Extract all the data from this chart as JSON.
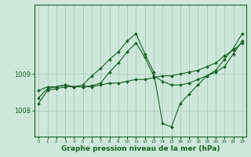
{
  "background_color": "#cce8d8",
  "plot_bg_color": "#cce8d8",
  "grid_color": "#aaccbb",
  "line_color": "#1a5e2a",
  "xlabel": "Graphe pression niveau de la mer (hPa)",
  "xlabel_fontsize": 6.5,
  "ylim": [
    1007.3,
    1010.9
  ],
  "yticks": [
    1008,
    1009
  ],
  "xlim": [
    -0.5,
    23.5
  ],
  "xticks": [
    0,
    1,
    2,
    3,
    4,
    5,
    6,
    7,
    8,
    9,
    10,
    11,
    12,
    13,
    14,
    15,
    16,
    17,
    18,
    19,
    20,
    21,
    22,
    23
  ],
  "series1_x": [
    0,
    1,
    2,
    3,
    4,
    5,
    6,
    7,
    8,
    9,
    10,
    11,
    12,
    13,
    14,
    15,
    16,
    17,
    18,
    19,
    20,
    21,
    22,
    23
  ],
  "series1_y": [
    1008.55,
    1008.65,
    1008.65,
    1008.7,
    1008.65,
    1008.65,
    1008.65,
    1008.7,
    1008.75,
    1008.75,
    1008.8,
    1008.85,
    1008.85,
    1008.9,
    1008.95,
    1008.95,
    1009.0,
    1009.05,
    1009.1,
    1009.2,
    1009.3,
    1009.5,
    1009.65,
    1009.85
  ],
  "series2_x": [
    0,
    1,
    2,
    3,
    4,
    5,
    6,
    7,
    8,
    9,
    10,
    11,
    12,
    13,
    14,
    15,
    16,
    17,
    18,
    19,
    20,
    21,
    22,
    23
  ],
  "series2_y": [
    1008.35,
    1008.6,
    1008.65,
    1008.7,
    1008.65,
    1008.65,
    1008.68,
    1008.75,
    1009.05,
    1009.3,
    1009.6,
    1009.85,
    1009.45,
    1008.95,
    1008.8,
    1008.7,
    1008.7,
    1008.75,
    1008.85,
    1008.95,
    1009.05,
    1009.2,
    1009.55,
    1009.9
  ],
  "series3_x": [
    0,
    1,
    2,
    3,
    4,
    5,
    6,
    7,
    8,
    9,
    10,
    11,
    12,
    13,
    14,
    15,
    16,
    17,
    18,
    19,
    20,
    21,
    22,
    23
  ],
  "series3_y": [
    1008.2,
    1008.55,
    1008.6,
    1008.65,
    1008.65,
    1008.7,
    1008.95,
    1009.15,
    1009.4,
    1009.6,
    1009.9,
    1010.1,
    1009.55,
    1009.05,
    1007.65,
    1007.55,
    1008.2,
    1008.45,
    1008.7,
    1008.95,
    1009.1,
    1009.4,
    1009.7,
    1010.1
  ]
}
